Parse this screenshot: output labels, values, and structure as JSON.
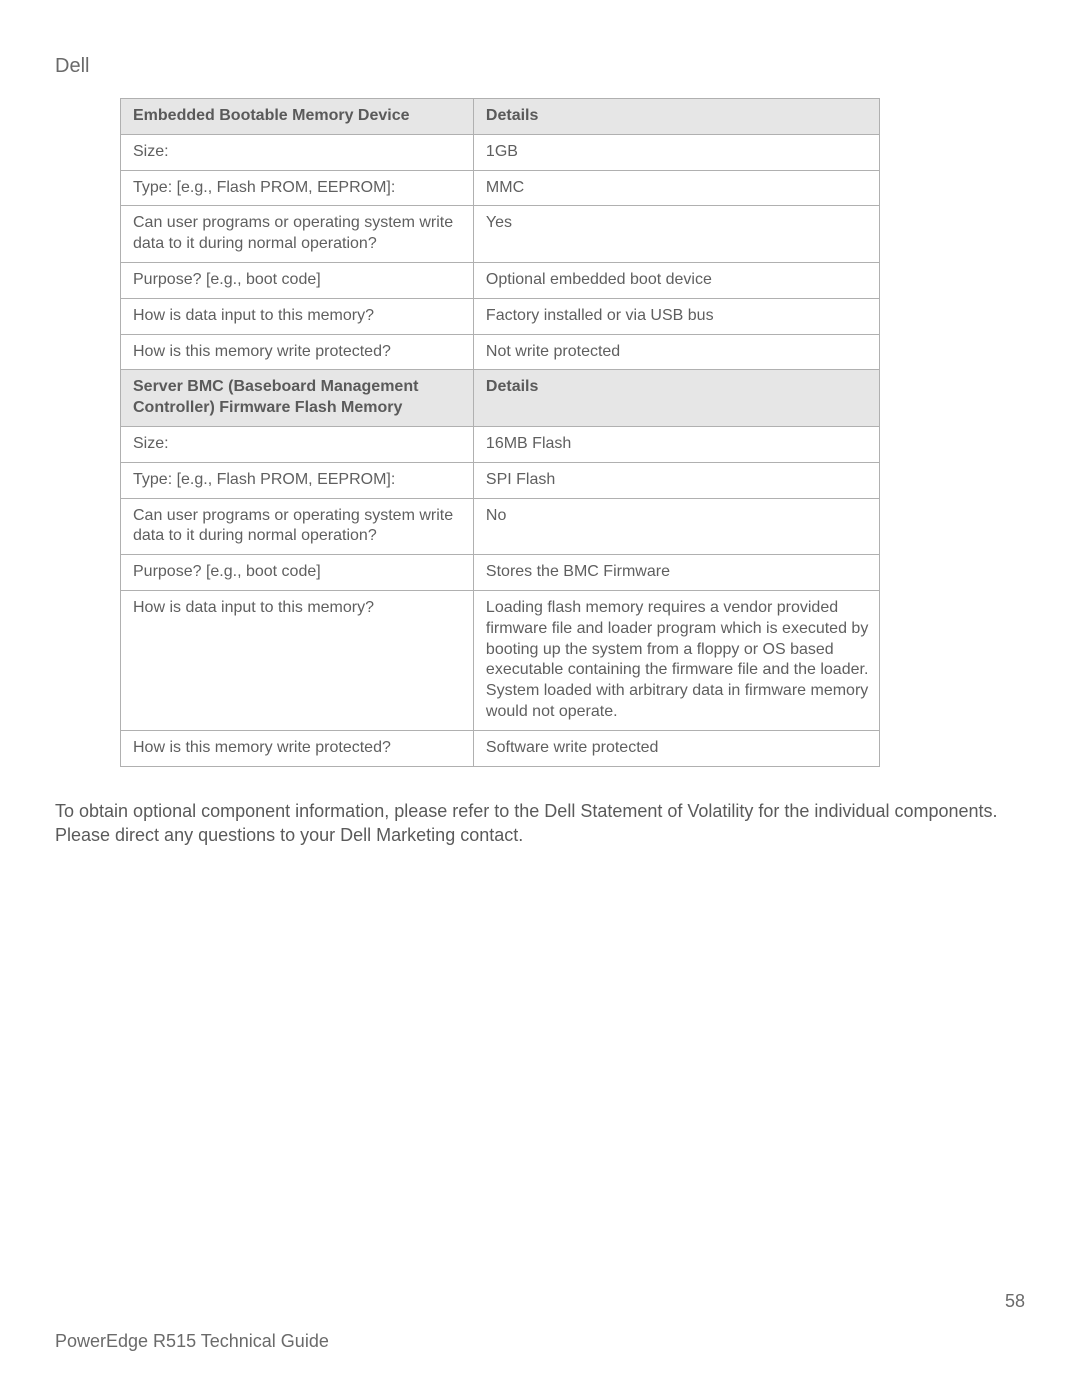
{
  "brand": "Dell",
  "table": {
    "col_widths": [
      "46.5%",
      "53.5%"
    ],
    "header_bg": "#e6e6e6",
    "border_color": "#b0b0b0",
    "text_color": "#5f5f5f",
    "font_size": 16,
    "rows": [
      {
        "type": "header",
        "left": "Embedded Bootable Memory Device",
        "right": "Details"
      },
      {
        "type": "data",
        "left": "Size:",
        "right": "1GB"
      },
      {
        "type": "data",
        "left": "Type: [e.g., Flash PROM, EEPROM]:",
        "right": "MMC"
      },
      {
        "type": "data",
        "left": "Can user programs or operating system write data to it during normal operation?",
        "right": "Yes"
      },
      {
        "type": "data",
        "left": "Purpose? [e.g., boot code]",
        "right": "Optional embedded boot device"
      },
      {
        "type": "data",
        "left": "How is data input to this memory?",
        "right": "Factory installed or via USB bus"
      },
      {
        "type": "data",
        "left": "How is this memory write protected?",
        "right": "Not write protected"
      },
      {
        "type": "header",
        "left": "Server BMC (Baseboard Management Controller) Firmware Flash Memory",
        "right": "Details"
      },
      {
        "type": "data",
        "left": "Size:",
        "right": "16MB Flash"
      },
      {
        "type": "data",
        "left": "Type: [e.g., Flash PROM, EEPROM]:",
        "right": "SPI Flash"
      },
      {
        "type": "data",
        "left": "Can user programs or operating system write data to it during normal operation?",
        "right": "No"
      },
      {
        "type": "data",
        "left": "Purpose? [e.g., boot code]",
        "right": "Stores the BMC Firmware"
      },
      {
        "type": "data",
        "left": "How is data input to this memory?",
        "right": "Loading flash memory requires a vendor provided firmware file and loader program which is executed by booting up the system from a floppy or OS based executable containing the firmware file and the loader. System loaded with arbitrary data in firmware memory would not operate."
      },
      {
        "type": "data",
        "left": "How is this memory write protected?",
        "right": "Software write protected"
      }
    ]
  },
  "paragraph": "To obtain optional component information, please refer to the Dell Statement of Volatility for the individual components. Please direct any questions to your Dell Marketing contact.",
  "footer": {
    "title": "PowerEdge R515 Technical Guide",
    "page_number": "58"
  }
}
